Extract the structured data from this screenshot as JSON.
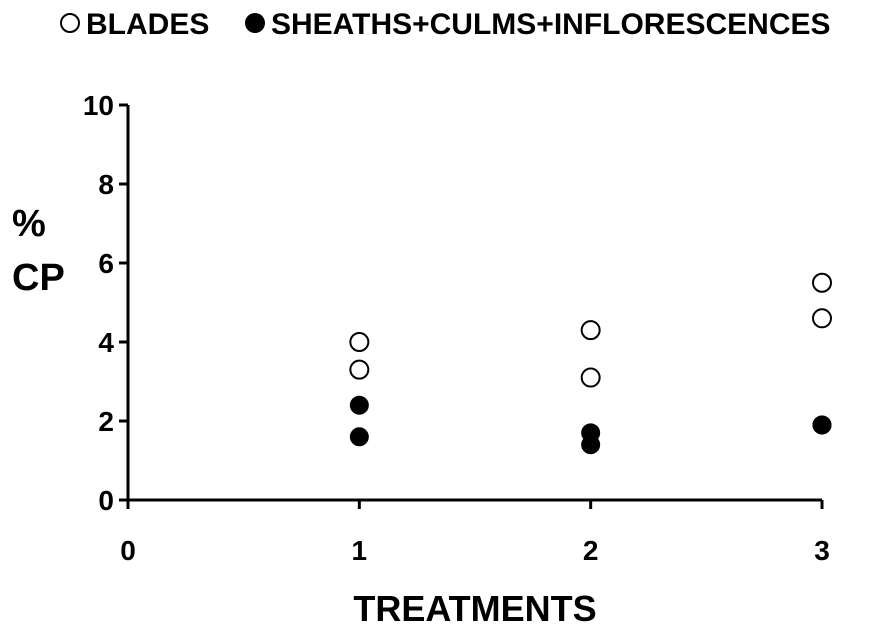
{
  "chart_data": {
    "type": "scatter",
    "xlabel": "TREATMENTS",
    "ylabel": [
      "%",
      "CP"
    ],
    "xlim": [
      0,
      3
    ],
    "ylim": [
      0,
      10
    ],
    "xticks": [
      0,
      1,
      2,
      3
    ],
    "yticks": [
      0,
      2,
      4,
      6,
      8,
      10
    ],
    "grid": false,
    "legend": "top",
    "series": [
      {
        "name": "BLADES",
        "marker": "open-circle",
        "points": [
          {
            "x": 1,
            "y": 4.0
          },
          {
            "x": 1,
            "y": 3.3
          },
          {
            "x": 2,
            "y": 4.3
          },
          {
            "x": 2,
            "y": 3.1
          },
          {
            "x": 3,
            "y": 5.5
          },
          {
            "x": 3,
            "y": 4.6
          }
        ]
      },
      {
        "name": "SHEATHS+CULMS+INFLORESCENCES",
        "marker": "filled-circle",
        "points": [
          {
            "x": 1,
            "y": 2.4
          },
          {
            "x": 1,
            "y": 1.6
          },
          {
            "x": 2,
            "y": 1.7
          },
          {
            "x": 2,
            "y": 1.4
          },
          {
            "x": 3,
            "y": 1.9
          },
          {
            "x": 3,
            "y": 1.9
          }
        ]
      }
    ]
  },
  "colors": {
    "ink": "#000000",
    "open_fill": "#ffffff"
  }
}
